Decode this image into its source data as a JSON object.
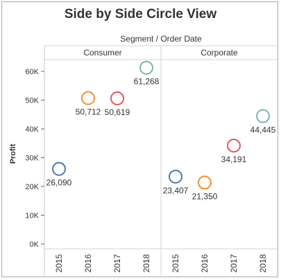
{
  "chart_data": {
    "type": "scatter",
    "title": "Side by Side Circle View",
    "column_header": "Segment / Order Date",
    "ylabel": "Profit",
    "ylim": [
      0,
      68000
    ],
    "y_ticks": [
      0,
      10000,
      20000,
      30000,
      40000,
      50000,
      60000
    ],
    "y_tick_labels": [
      "0K",
      "10K",
      "20K",
      "30K",
      "40K",
      "50K",
      "60K"
    ],
    "categories": [
      "2015",
      "2016",
      "2017",
      "2018"
    ],
    "year_colors": {
      "2015": "#4e79a7",
      "2016": "#f28e2b",
      "2017": "#e15759",
      "2018": "#76b7b2"
    },
    "panels": [
      {
        "segment": "Consumer",
        "values": [
          26090,
          50712,
          50619,
          61268
        ],
        "labels": [
          "26,090",
          "50,712",
          "50,619",
          "61,268"
        ]
      },
      {
        "segment": "Corporate",
        "values": [
          23407,
          21350,
          34191,
          44445
        ],
        "labels": [
          "23,407",
          "21,350",
          "34,191",
          "44,445"
        ]
      }
    ]
  }
}
